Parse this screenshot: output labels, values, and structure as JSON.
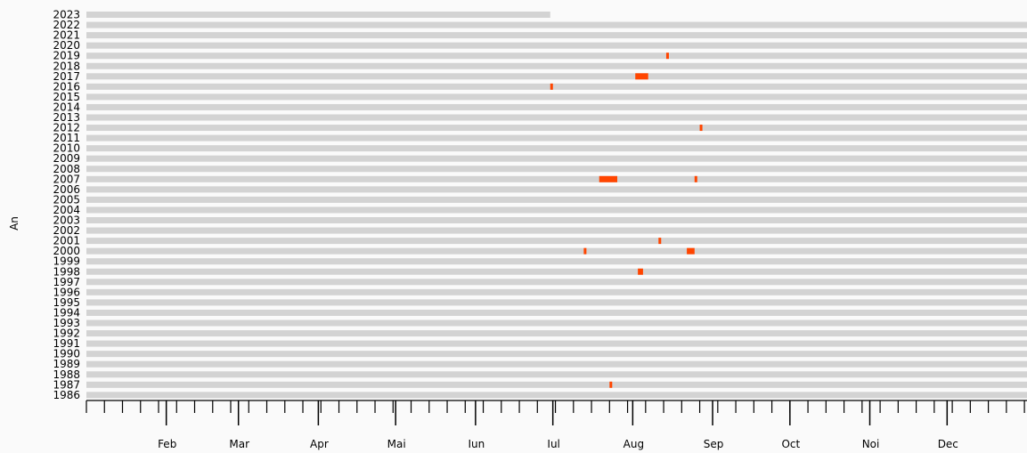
{
  "chart_data": {
    "type": "heatmap",
    "title": "",
    "ylabel": "An",
    "xlabel": "",
    "years": [
      "2023",
      "2022",
      "2021",
      "2020",
      "2019",
      "2018",
      "2017",
      "2016",
      "2015",
      "2014",
      "2013",
      "2012",
      "2011",
      "2010",
      "2009",
      "2008",
      "2007",
      "2006",
      "2005",
      "2004",
      "2003",
      "2002",
      "2001",
      "2000",
      "1999",
      "1998",
      "1997",
      "1996",
      "1995",
      "1994",
      "1993",
      "1992",
      "1991",
      "1990",
      "1989",
      "1988",
      "1987",
      "1986"
    ],
    "months": [
      "Feb",
      "Mar",
      "Apr",
      "Mai",
      "Iun",
      "Iul",
      "Aug",
      "Sep",
      "Oct",
      "Noi",
      "Dec"
    ],
    "x_range_day_of_year": [
      1,
      366
    ],
    "bar_color": "#d3d3d3",
    "event_color": "#ff4500",
    "year_coverage_last_day": {
      "2023": 181
    },
    "events": [
      {
        "year": "2019",
        "start_day": 226,
        "end_day": 226
      },
      {
        "year": "2017",
        "start_day": 214,
        "end_day": 218
      },
      {
        "year": "2016",
        "start_day": 181,
        "end_day": 181
      },
      {
        "year": "2012",
        "start_day": 239,
        "end_day": 239
      },
      {
        "year": "2007",
        "start_day": 200,
        "end_day": 206
      },
      {
        "year": "2007",
        "start_day": 237,
        "end_day": 237
      },
      {
        "year": "2001",
        "start_day": 223,
        "end_day": 223
      },
      {
        "year": "2000",
        "start_day": 194,
        "end_day": 194
      },
      {
        "year": "2000",
        "start_day": 234,
        "end_day": 236
      },
      {
        "year": "1998",
        "start_day": 215,
        "end_day": 216
      },
      {
        "year": "1987",
        "start_day": 204,
        "end_day": 204
      }
    ]
  }
}
